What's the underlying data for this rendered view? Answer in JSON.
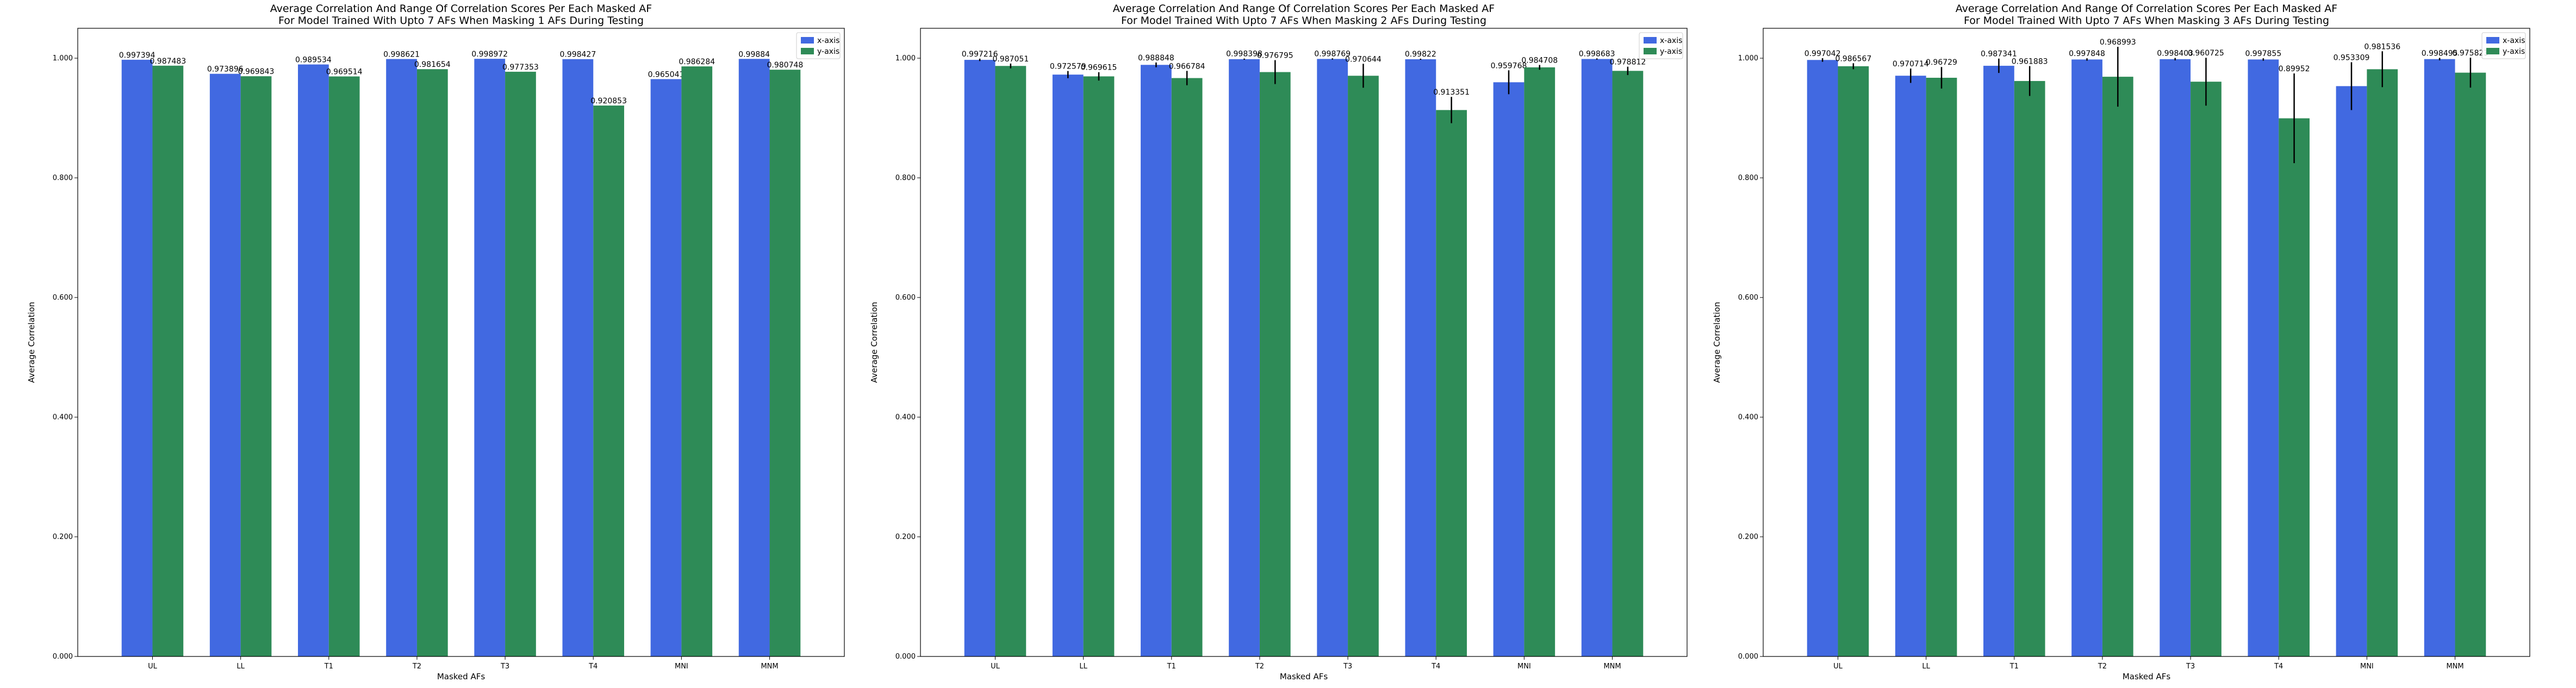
{
  "chart_data": [
    {
      "type": "bar",
      "title": "Average Correlation And Range Of Correlation Scores Per Each Masked AF",
      "subtitle": "For Model Trained With Upto 7 AFs When Masking 1 AFs During Testing",
      "xlabel": "Masked AFs",
      "ylabel": "Average Correlation",
      "ylim": [
        0,
        1.05
      ],
      "yticks": [
        "0.000",
        "0.200",
        "0.400",
        "0.600",
        "0.800",
        "1.000"
      ],
      "categories": [
        "UL",
        "LL",
        "T1",
        "T2",
        "T3",
        "T4",
        "MNI",
        "MNM"
      ],
      "legend_position": "top-right",
      "series": [
        {
          "name": "x-axis",
          "color": "#4169e1",
          "values": [
            0.997394,
            0.973896,
            0.989534,
            0.998621,
            0.998972,
            0.998427,
            0.965041,
            0.99884
          ],
          "labels": [
            "0.997394",
            "0.973896",
            "0.989534",
            "0.998621",
            "0.998972",
            "0.998427",
            "0.965041",
            "0.99884"
          ],
          "err": [
            0,
            0,
            0,
            0,
            0,
            0,
            0,
            0
          ]
        },
        {
          "name": "y-axis",
          "color": "#2e8b57",
          "values": [
            0.987483,
            0.969843,
            0.969514,
            0.981654,
            0.977353,
            0.920853,
            0.986284,
            0.980748
          ],
          "labels": [
            "0.987483",
            "0.969843",
            "0.969514",
            "0.981654",
            "0.977353",
            "0.920853",
            "0.986284",
            "0.980748"
          ],
          "err": [
            0,
            0,
            0,
            0,
            0,
            0,
            0,
            0
          ]
        }
      ]
    },
    {
      "type": "bar",
      "title": "Average Correlation And Range Of Correlation Scores Per Each Masked AF",
      "subtitle": "For Model Trained With Upto 7 AFs When Masking 2 AFs During Testing",
      "xlabel": "Masked AFs",
      "ylabel": "Average Correlation",
      "ylim": [
        0,
        1.05
      ],
      "yticks": [
        "0.000",
        "0.200",
        "0.400",
        "0.600",
        "0.800",
        "1.000"
      ],
      "categories": [
        "UL",
        "LL",
        "T1",
        "T2",
        "T3",
        "T4",
        "MNI",
        "MNM"
      ],
      "legend_position": "top-right",
      "series": [
        {
          "name": "x-axis",
          "color": "#4169e1",
          "values": [
            0.997216,
            0.972579,
            0.988848,
            0.998398,
            0.998769,
            0.99822,
            0.959768,
            0.998683
          ],
          "labels": [
            "0.997216",
            "0.972579",
            "0.988848",
            "0.998398",
            "0.998769",
            "0.99822",
            "0.959768",
            "0.998683"
          ],
          "err": [
            0.002,
            0.006,
            0.004,
            0.001,
            0.001,
            0.001,
            0.02,
            0.001
          ]
        },
        {
          "name": "y-axis",
          "color": "#2e8b57",
          "values": [
            0.987051,
            0.969615,
            0.966784,
            0.976795,
            0.970644,
            0.913351,
            0.984708,
            0.978812
          ],
          "labels": [
            "0.987051",
            "0.969615",
            "0.966784",
            "0.976795",
            "0.970644",
            "0.913351",
            "0.984708",
            "0.978812"
          ],
          "err": [
            0.004,
            0.007,
            0.012,
            0.02,
            0.02,
            0.022,
            0.004,
            0.007
          ]
        }
      ]
    },
    {
      "type": "bar",
      "title": "Average Correlation And Range Of Correlation Scores Per Each Masked AF",
      "subtitle": "For Model Trained With Upto 7 AFs When Masking 3 AFs During Testing",
      "xlabel": "Masked AFs",
      "ylabel": "Average Correlation",
      "ylim": [
        0,
        1.05
      ],
      "yticks": [
        "0.000",
        "0.200",
        "0.400",
        "0.600",
        "0.800",
        "1.000"
      ],
      "categories": [
        "UL",
        "LL",
        "T1",
        "T2",
        "T3",
        "T4",
        "MNI",
        "MNM"
      ],
      "legend_position": "top-right",
      "series": [
        {
          "name": "x-axis",
          "color": "#4169e1",
          "values": [
            0.997042,
            0.970714,
            0.987341,
            0.997848,
            0.998403,
            0.997855,
            0.953309,
            0.998495
          ],
          "labels": [
            "0.997042",
            "0.970714",
            "0.987341",
            "0.997848",
            "0.998403",
            "0.997855",
            "0.953309",
            "0.998495"
          ],
          "err": [
            0.003,
            0.012,
            0.012,
            0.002,
            0.002,
            0.002,
            0.04,
            0.002
          ]
        },
        {
          "name": "y-axis",
          "color": "#2e8b57",
          "values": [
            0.986567,
            0.96729,
            0.961883,
            0.968993,
            0.960725,
            0.89952,
            0.981536,
            0.975823
          ],
          "labels": [
            "0.986567",
            "0.96729",
            "0.961883",
            "0.968993",
            "0.960725",
            "0.89952",
            "0.981536",
            "0.975823"
          ],
          "err": [
            0.005,
            0.018,
            0.025,
            0.05,
            0.04,
            0.075,
            0.03,
            0.025
          ]
        }
      ]
    }
  ]
}
